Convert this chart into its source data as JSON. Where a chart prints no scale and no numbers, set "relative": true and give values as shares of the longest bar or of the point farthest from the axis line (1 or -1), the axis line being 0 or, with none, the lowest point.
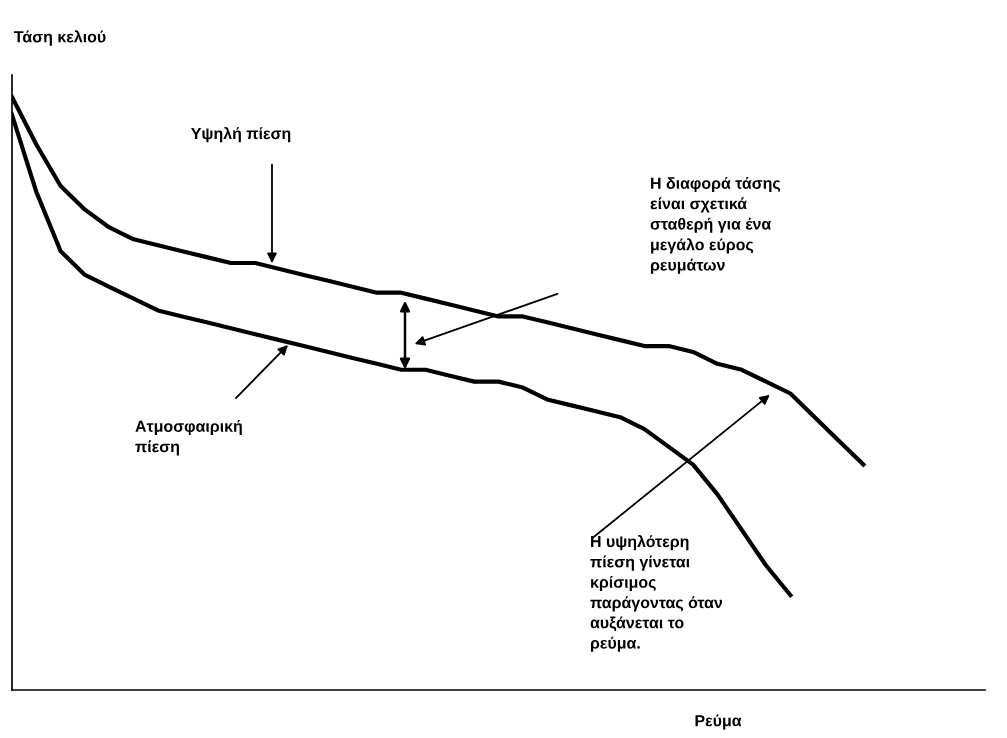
{
  "chart_data": {
    "type": "line",
    "relative": true,
    "xlabel": "Ρεύμα",
    "ylabel": "Τάση κελιού",
    "categories": [
      null,
      null,
      null,
      null,
      null,
      null,
      null,
      null,
      null,
      null,
      null,
      null,
      null,
      null,
      null,
      null,
      null,
      null,
      null,
      null,
      null,
      null,
      null,
      null,
      null,
      null,
      null,
      null,
      null,
      null,
      null,
      null,
      null,
      null,
      null,
      null,
      null,
      null,
      null,
      null,
      null
    ],
    "series": [
      {
        "color": "#000000",
        "values": [
          1.0,
          0.92,
          0.85,
          0.81,
          0.78,
          0.76,
          0.75,
          0.74,
          0.73,
          0.72,
          0.72,
          0.71,
          0.7,
          0.69,
          0.68,
          0.67,
          0.67,
          0.66,
          0.65,
          0.64,
          0.63,
          0.63,
          0.62,
          0.61,
          0.6,
          0.59,
          0.58,
          0.58,
          0.57,
          0.55,
          0.54,
          0.52,
          0.5,
          0.46,
          0.42,
          0.38,
          null,
          null,
          null,
          null,
          null
        ]
      },
      {
        "color": "#000000",
        "values": [
          0.97,
          0.84,
          0.74,
          0.7,
          0.68,
          0.66,
          0.64,
          0.63,
          0.62,
          0.61,
          0.6,
          0.59,
          0.58,
          0.57,
          0.56,
          0.55,
          0.54,
          0.54,
          0.53,
          0.52,
          0.52,
          0.51,
          0.49,
          0.48,
          0.47,
          0.46,
          0.44,
          0.41,
          0.38,
          0.33,
          0.27,
          0.21,
          0.16,
          null,
          null,
          null,
          null,
          null,
          null,
          null,
          null
        ]
      }
    ],
    "annotations": [
      "Υψηλή πίεση",
      "Η διαφορά τάσης\nείναι σχετικά\nσταθερή για ένα\nμεγάλο εύρος\nρευμάτων",
      "Ατμοσφαιρική\nπίεση",
      "Η υψηλότερη\nπίεση γίνεται\nκρίσιμος\nπαράγοντας όταν\nαυξάνεται το\nρεύμα."
    ],
    "line_style": "solid"
  }
}
